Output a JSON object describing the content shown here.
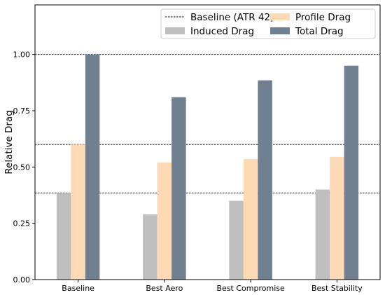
{
  "chart_data": {
    "type": "bar",
    "categories": [
      "Baseline",
      "Best Aero",
      "Best Compromise",
      "Best Stability"
    ],
    "series": [
      {
        "name": "Induced Drag",
        "values": [
          0.385,
          0.29,
          0.35,
          0.4
        ],
        "color": "#bfbfbf"
      },
      {
        "name": "Profile Drag",
        "values": [
          0.6,
          0.52,
          0.535,
          0.545
        ],
        "color": "#fdd9b5"
      },
      {
        "name": "Total Drag",
        "values": [
          1.0,
          0.81,
          0.885,
          0.95
        ],
        "color": "#708090"
      }
    ],
    "reference_lines": {
      "name": "Baseline (ATR 42)",
      "values": [
        1.0,
        0.6,
        0.385
      ],
      "style": "dashed",
      "color": "#000000"
    },
    "title": "",
    "xlabel": "",
    "ylabel": "Relative Drag",
    "ylim": [
      0,
      1.22
    ],
    "yticks": [
      "0.00",
      "0.25",
      "0.50",
      "0.75",
      "1.00"
    ],
    "grid": false,
    "legend_position": "top-right",
    "legend_order": [
      "Baseline (ATR 42)",
      "Profile Drag",
      "Induced Drag",
      "Total Drag"
    ]
  }
}
